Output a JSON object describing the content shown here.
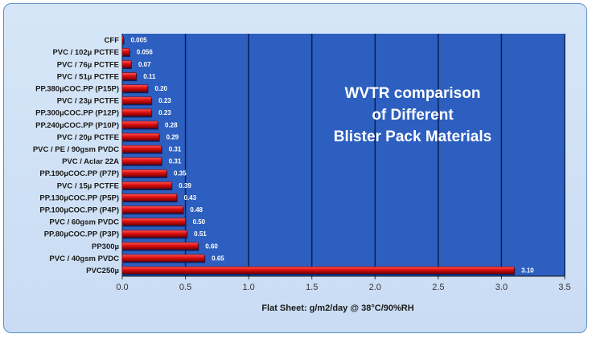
{
  "chart_data": {
    "type": "bar",
    "orientation": "horizontal",
    "title": "WVTR comparison of Different Blister Pack Materials",
    "title_lines": [
      "WVTR comparison",
      "of Different",
      "Blister Pack Materials"
    ],
    "xlabel": "Flat Sheet: g/m2/day @ 38°C/90%RH",
    "ylabel": "",
    "xlim": [
      0,
      3.5
    ],
    "xticks": [
      "0.0",
      "0.5",
      "1.0",
      "1.5",
      "2.0",
      "2.5",
      "3.0",
      "3.5"
    ],
    "grid": true,
    "categories": [
      "CFF",
      "PVC / 102µ PCTFE",
      "PVC / 76µ PCTFE",
      "PVC / 51µ PCTFE",
      "PP.380µCOC.PP (P15P)",
      "PVC / 23µ PCTFE",
      "PP.300µCOC.PP (P12P)",
      "PP.240µCOC.PP (P10P)",
      "PVC / 20µ PCTFE",
      "PVC / PE / 90gsm PVDC",
      "PVC / Aclar 22A",
      "PP.190µCOC.PP (P7P)",
      "PVC / 15µ PCTFE",
      "PP.130µCOC.PP (P5P)",
      "PP.100µCOC.PP (P4P)",
      "PVC / 60gsm PVDC",
      "PP.80µCOC.PP (P3P)",
      "PP300µ",
      "PVC / 40gsm PVDC",
      "PVC250µ"
    ],
    "values": [
      0.005,
      0.056,
      0.07,
      0.11,
      0.2,
      0.23,
      0.23,
      0.28,
      0.29,
      0.31,
      0.31,
      0.35,
      0.39,
      0.43,
      0.48,
      0.5,
      0.51,
      0.6,
      0.65,
      3.1
    ],
    "value_labels": [
      "0.005",
      "0.056",
      "0.07",
      "0.11",
      "0.20",
      "0.23",
      "0.23",
      "0.28",
      "0.29",
      "0.31",
      "0.31",
      "0.35",
      "0.39",
      "0.43",
      "0.48",
      "0.50",
      "0.51",
      "0.60",
      "0.65",
      "3.10"
    ],
    "colors": {
      "plot_background": "#2c5fbf",
      "bar": "#e01010",
      "bar_dark": "#800000",
      "gridline": "#0a1f55",
      "title_text": "#ffffff",
      "label_text": "#1a1a1a"
    }
  }
}
